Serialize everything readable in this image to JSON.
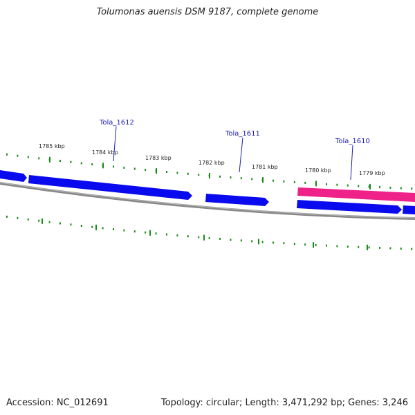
{
  "title": "Tolumonas auensis DSM 9187, complete genome",
  "footer": {
    "accession": "Accession: NC_012691",
    "summary": "Topology: circular; Length: 3,471,292 bp; Genes: 3,246"
  },
  "colors": {
    "forward_gene": "#0a0aee",
    "highlight_gene": "#ee2288",
    "backbone": "#888888",
    "ticks": "#1a8a1a",
    "gene_label": "#1a1ab0"
  },
  "scale_labels": [
    "1785 kbp",
    "1784 kbp",
    "1783 kbp",
    "1782 kbp",
    "1781 kbp",
    "1780 kbp",
    "1779 kbp"
  ],
  "gene_labels": [
    "Tola_1612",
    "Tola_1611",
    "Tola_1610"
  ]
}
